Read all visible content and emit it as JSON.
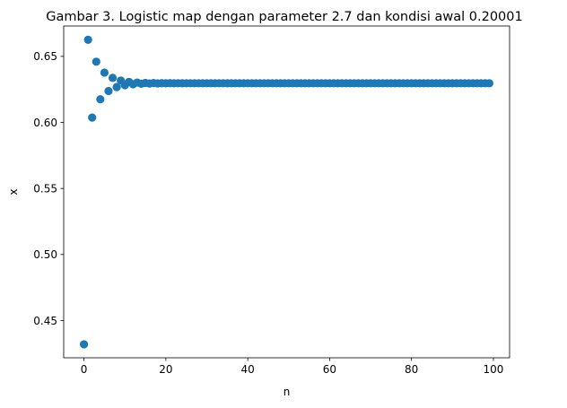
{
  "chart_data": {
    "type": "scatter",
    "title": "Gambar 3. Logistic map dengan parameter 2.7 dan kondisi awal 0.20001",
    "xlabel": "n",
    "ylabel": "x",
    "xlim": [
      -4.95,
      103.95
    ],
    "ylim": [
      0.4218,
      0.673
    ],
    "xticks": [
      0,
      20,
      40,
      60,
      80,
      100
    ],
    "xtick_labels": [
      "0",
      "20",
      "40",
      "60",
      "80",
      "100"
    ],
    "yticks": [
      0.45,
      0.5,
      0.55,
      0.6,
      0.65
    ],
    "ytick_labels": [
      "0.45",
      "0.50",
      "0.55",
      "0.60",
      "0.65"
    ],
    "grid": false,
    "marker_color": "#1f77b4",
    "parameter_r": 2.7,
    "initial_condition": 0.20001,
    "x": [
      0,
      1,
      2,
      3,
      4,
      5,
      6,
      7,
      8,
      9,
      10,
      11,
      12,
      13,
      14,
      15,
      16,
      17,
      18,
      19,
      20,
      21,
      22,
      23,
      24,
      25,
      26,
      27,
      28,
      29,
      30,
      31,
      32,
      33,
      34,
      35,
      36,
      37,
      38,
      39,
      40,
      41,
      42,
      43,
      44,
      45,
      46,
      47,
      48,
      49,
      50,
      51,
      52,
      53,
      54,
      55,
      56,
      57,
      58,
      59,
      60,
      61,
      62,
      63,
      64,
      65,
      66,
      67,
      68,
      69,
      70,
      71,
      72,
      73,
      74,
      75,
      76,
      77,
      78,
      79,
      80,
      81,
      82,
      83,
      84,
      85,
      86,
      87,
      88,
      89,
      90,
      91,
      92,
      93,
      94,
      95,
      96,
      97,
      98,
      99
    ],
    "y": [
      0.43202,
      0.66254,
      0.60367,
      0.64598,
      0.61748,
      0.63773,
      0.62378,
      0.63374,
      0.62673,
      0.63173,
      0.62818,
      0.63071,
      0.62891,
      0.63019,
      0.62928,
      0.62993,
      0.62947,
      0.6298,
      0.62956,
      0.62973,
      0.62961,
      0.6297,
      0.62964,
      0.62968,
      0.62965,
      0.62967,
      0.62966,
      0.62967,
      0.62966,
      0.62966,
      0.62966,
      0.62966,
      0.62966,
      0.62966,
      0.62966,
      0.62966,
      0.62966,
      0.62966,
      0.62966,
      0.62966,
      0.62966,
      0.62966,
      0.62966,
      0.62966,
      0.62966,
      0.62966,
      0.62966,
      0.62966,
      0.62966,
      0.62966,
      0.62966,
      0.62966,
      0.62966,
      0.62966,
      0.62966,
      0.62966,
      0.62966,
      0.62966,
      0.62966,
      0.62966,
      0.62966,
      0.62966,
      0.62966,
      0.62966,
      0.62966,
      0.62966,
      0.62966,
      0.62966,
      0.62966,
      0.62966,
      0.62966,
      0.62966,
      0.62966,
      0.62966,
      0.62966,
      0.62966,
      0.62966,
      0.62966,
      0.62966,
      0.62966,
      0.62966,
      0.62966,
      0.62966,
      0.62966,
      0.62966,
      0.62966,
      0.62966,
      0.62966,
      0.62966,
      0.62966,
      0.62966,
      0.62966,
      0.62966,
      0.62966,
      0.62966,
      0.62966,
      0.62966,
      0.62966,
      0.62966,
      0.62966
    ]
  }
}
